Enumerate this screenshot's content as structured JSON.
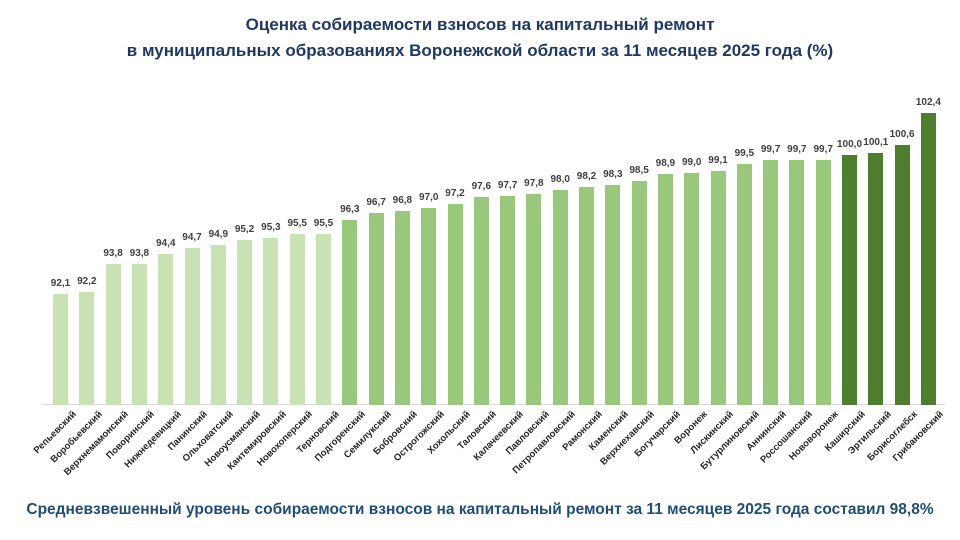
{
  "title": {
    "line1": "Оценка собираемости взносов на капитальный ремонт",
    "line2": "в муниципальных образованиях Воронежской области за 11 месяцев 2025 года (%)"
  },
  "caption": "Средневзвешенный уровень собираемости взносов на капитальный ремонт за 11 месяцев 2025 года составил 98,8%",
  "chart_data": {
    "type": "bar",
    "title": "Оценка собираемости взносов на капитальный ремонт в муниципальных образованиях Воронежской области за 11 месяцев 2025 года (%)",
    "xlabel": "",
    "ylabel": "",
    "ylim": [
      85.8,
      103.2
    ],
    "grid": false,
    "legend": false,
    "value_label_decimal_separator": ",",
    "categories": [
      "Репьевский",
      "Воробьевский",
      "Верхнемамонский",
      "Поворинский",
      "Нижнедевицкий",
      "Панинский",
      "Ольховатский",
      "Новоусманский",
      "Кантемировский",
      "Новохоперский",
      "Терновский",
      "Подгоренский",
      "Семилукский",
      "Бобровский",
      "Острогожский",
      "Хохольский",
      "Таловский",
      "Калачеевский",
      "Павловский",
      "Петропавловский",
      "Рамонский",
      "Каменский",
      "Верхнехавский",
      "Богучарский",
      "Воронеж",
      "Лискинский",
      "Бутурлиновский",
      "Аннинский",
      "Россошанский",
      "Нововоронеж",
      "Каширский",
      "Эртильский",
      "Борисоглебск",
      "Грибановский"
    ],
    "values": [
      92.1,
      92.2,
      93.8,
      93.8,
      94.4,
      94.7,
      94.9,
      95.2,
      95.3,
      95.5,
      95.5,
      96.3,
      96.7,
      96.8,
      97.0,
      97.2,
      97.6,
      97.7,
      97.8,
      98.0,
      98.2,
      98.3,
      98.5,
      98.9,
      99.0,
      99.1,
      99.5,
      99.7,
      99.7,
      99.7,
      100.0,
      100.1,
      100.6,
      102.4
    ],
    "colors": {
      "bar_low": "#c9e2b4",
      "bar_mid": "#99c77c",
      "bar_high": "#4f7d2e",
      "title_text": "#1f3864",
      "caption_text": "#1f4e79",
      "label_text": "#3f3f3f",
      "axis_line": "#d9d9d9"
    },
    "color_thresholds": {
      "mid_from": 96.0,
      "high_from": 100.0
    }
  }
}
